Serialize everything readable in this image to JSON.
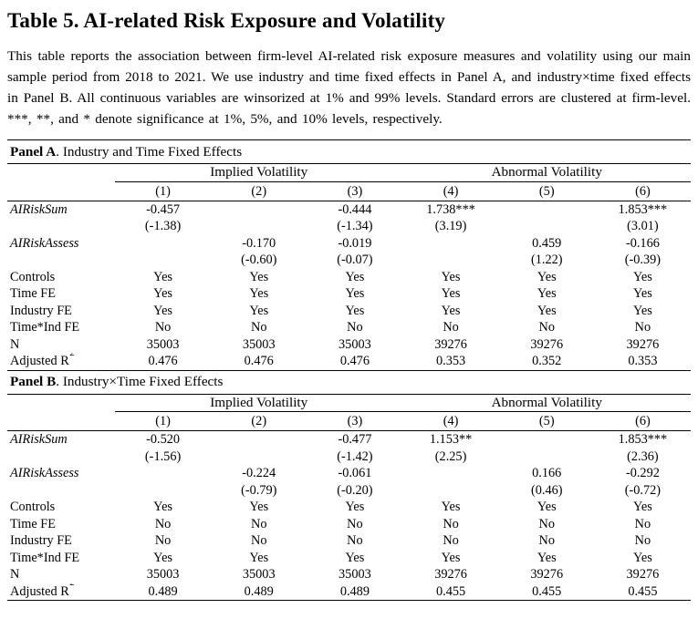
{
  "title": "Table 5. AI-related Risk Exposure and Volatility",
  "description": "This table reports the association between firm-level AI-related risk exposure measures and volatility using our main sample period from 2018 to 2021. We use industry and time fixed effects in Panel A, and industry×time fixed effects in Panel B. All continuous variables are winsorized at 1% and 99% levels. Standard errors are clustered at firm-level. ***, **, and * denote significance at 1%, 5%, and 10% levels, respectively.",
  "panelA": {
    "heading_bold": "Panel A",
    "heading_rest": ". Industry and Time Fixed Effects",
    "group1": "Implied Volatility",
    "group2": "Abnormal Volatility",
    "cols": [
      "(1)",
      "(2)",
      "(3)",
      "(4)",
      "(5)",
      "(6)"
    ],
    "rows": [
      {
        "label": "AIRiskSum",
        "values": [
          "-0.457",
          "",
          "-0.444",
          "1.738***",
          "",
          "1.853***"
        ]
      },
      {
        "label": "",
        "values": [
          "(-1.38)",
          "",
          "(-1.34)",
          "(3.19)",
          "",
          "(3.01)"
        ]
      },
      {
        "label": "AIRiskAssess",
        "values": [
          "",
          "-0.170",
          "-0.019",
          "",
          "0.459",
          "-0.166"
        ]
      },
      {
        "label": "",
        "values": [
          "",
          "(-0.60)",
          "(-0.07)",
          "",
          "(1.22)",
          "(-0.39)"
        ]
      },
      {
        "label": "Controls",
        "values": [
          "Yes",
          "Yes",
          "Yes",
          "Yes",
          "Yes",
          "Yes"
        ]
      },
      {
        "label": "Time FE",
        "values": [
          "Yes",
          "Yes",
          "Yes",
          "Yes",
          "Yes",
          "Yes"
        ]
      },
      {
        "label": "Industry FE",
        "values": [
          "Yes",
          "Yes",
          "Yes",
          "Yes",
          "Yes",
          "Yes"
        ]
      },
      {
        "label": "Time*Ind FE",
        "values": [
          "No",
          "No",
          "No",
          "No",
          "No",
          "No"
        ]
      },
      {
        "label": "N",
        "values": [
          "35003",
          "35003",
          "35003",
          "39276",
          "39276",
          "39276"
        ]
      },
      {
        "label": "Adjusted R",
        "label_sup": "2",
        "values": [
          "0.476",
          "0.476",
          "0.476",
          "0.353",
          "0.352",
          "0.353"
        ]
      }
    ]
  },
  "panelB": {
    "heading_bold": "Panel B",
    "heading_rest": ". Industry×Time Fixed Effects",
    "group1": "Implied Volatility",
    "group2": "Abnormal Volatility",
    "cols": [
      "(1)",
      "(2)",
      "(3)",
      "(4)",
      "(5)",
      "(6)"
    ],
    "rows": [
      {
        "label": "AIRiskSum",
        "values": [
          "-0.520",
          "",
          "-0.477",
          "1.153**",
          "",
          "1.853***"
        ]
      },
      {
        "label": "",
        "values": [
          "(-1.56)",
          "",
          "(-1.42)",
          "(2.25)",
          "",
          "(2.36)"
        ]
      },
      {
        "label": "AIRiskAssess",
        "values": [
          "",
          "-0.224",
          "-0.061",
          "",
          "0.166",
          "-0.292"
        ]
      },
      {
        "label": "",
        "values": [
          "",
          "(-0.79)",
          "(-0.20)",
          "",
          "(0.46)",
          "(-0.72)"
        ]
      },
      {
        "label": "Controls",
        "values": [
          "Yes",
          "Yes",
          "Yes",
          "Yes",
          "Yes",
          "Yes"
        ]
      },
      {
        "label": "Time FE",
        "values": [
          "No",
          "No",
          "No",
          "No",
          "No",
          "No"
        ]
      },
      {
        "label": "Industry FE",
        "values": [
          "No",
          "No",
          "No",
          "No",
          "No",
          "No"
        ]
      },
      {
        "label": "Time*Ind FE",
        "values": [
          "Yes",
          "Yes",
          "Yes",
          "Yes",
          "Yes",
          "Yes"
        ]
      },
      {
        "label": "N",
        "values": [
          "35003",
          "35003",
          "35003",
          "39276",
          "39276",
          "39276"
        ]
      },
      {
        "label": "Adjusted R",
        "label_sup": "2",
        "values": [
          "0.489",
          "0.489",
          "0.489",
          "0.455",
          "0.455",
          "0.455"
        ]
      }
    ]
  }
}
